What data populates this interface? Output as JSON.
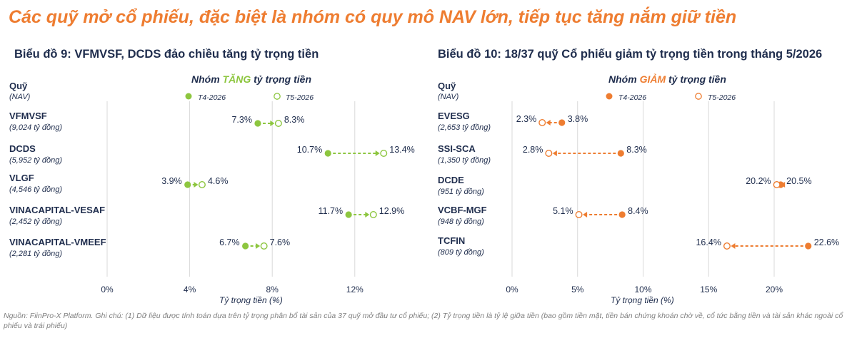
{
  "main_title": "Các quỹ mở cổ phiếu, đặc biệt là nhóm có quy mô NAV lớn, tiếp tục tăng nắm giữ tiền",
  "footnote": "Nguồn: FiinPro-X Platform. Ghi chú: (1) Dữ liệu được tính toán dựa trên tỷ trọng phân bổ tài sản của 37 quỹ mở đầu tư cổ phiếu; (2) Tỷ trọng tiền là tỷ lệ giữa tiền (bao gồm tiền mặt, tiền bán chứng khoán chờ về, cổ tức bằng tiền và tài sản khác ngoài cổ phiếu và trái phiếu)",
  "colors": {
    "increase": "#8dc63f",
    "decrease": "#ee7d31",
    "text": "#1f2d4d",
    "title": "#ee7d31"
  },
  "chart_data": [
    {
      "type": "dumbbell",
      "title": "Biểu đồ 9: VFMVSF, DCDS đảo chiều tăng tỷ trọng tiền",
      "group_title_prefix": "Nhóm ",
      "group_title_keyword": "TĂNG",
      "group_title_suffix": " tỷ trọng tiền",
      "header_name": "Quỹ",
      "header_nav": "(NAV)",
      "legend": [
        "T4-2026",
        "T5-2026"
      ],
      "xlabel": "Tỷ trọng tiền (%)",
      "xlim": [
        0,
        15
      ],
      "ticks": [
        0,
        4,
        8,
        12
      ],
      "tick_labels": [
        "0%",
        "4%",
        "8%",
        "12%"
      ],
      "funds": [
        {
          "name": "VFMVSF",
          "nav": "(9,024 tỷ đồng)",
          "t4": 7.3,
          "t5": 8.3,
          "t4_label": "7.3%",
          "t5_label": "8.3%"
        },
        {
          "name": "DCDS",
          "nav": "(5,952 tỷ đồng)",
          "t4": 10.7,
          "t5": 13.4,
          "t4_label": "10.7%",
          "t5_label": "13.4%"
        },
        {
          "name": "VLGF",
          "nav": "(4,546 tỷ đồng)",
          "t4": 3.9,
          "t5": 4.6,
          "t4_label": "3.9%",
          "t5_label": "4.6%"
        },
        {
          "name": "VINACAPITAL-VESAF",
          "nav": "(2,452 tỷ đồng)",
          "t4": 11.7,
          "t5": 12.9,
          "t4_label": "11.7%",
          "t5_label": "12.9%"
        },
        {
          "name": "VINACAPITAL-VMEEF",
          "nav": "(2,281 tỷ đồng)",
          "t4": 6.7,
          "t5": 7.6,
          "t4_label": "6.7%",
          "t5_label": "7.6%"
        }
      ]
    },
    {
      "type": "dumbbell",
      "title": "Biểu đồ 10: 18/37 quỹ Cổ phiếu giảm tỷ trọng tiền trong tháng 5/2026",
      "group_title_prefix": "Nhóm ",
      "group_title_keyword": "GIẢM",
      "group_title_suffix": " tỷ trọng tiền",
      "header_name": "Quỹ",
      "header_nav": "(NAV)",
      "legend": [
        "T4-2026",
        "T5-2026"
      ],
      "xlabel": "Tỷ trọng tiền (%)",
      "xlim": [
        0,
        25
      ],
      "ticks": [
        0,
        5,
        10,
        15,
        20
      ],
      "tick_labels": [
        "0%",
        "5%",
        "10%",
        "15%",
        "20%"
      ],
      "funds": [
        {
          "name": "EVESG",
          "nav": "(2,653 tỷ đồng)",
          "t4": 3.8,
          "t5": 2.3,
          "t4_label": "3.8%",
          "t5_label": "2.3%"
        },
        {
          "name": "SSI-SCA",
          "nav": "(1,350 tỷ đồng)",
          "t4": 8.3,
          "t5": 2.8,
          "t4_label": "8.3%",
          "t5_label": "2.8%"
        },
        {
          "name": "DCDE",
          "nav": "(951 tỷ đồng)",
          "t4": 20.5,
          "t5": 20.2,
          "t4_label": "20.5%",
          "t5_label": "20.2%"
        },
        {
          "name": "VCBF-MGF",
          "nav": "(948 tỷ đồng)",
          "t4": 8.4,
          "t5": 5.1,
          "t4_label": "8.4%",
          "t5_label": "5.1%"
        },
        {
          "name": "TCFIN",
          "nav": "(809 tỷ đồng)",
          "t4": 22.6,
          "t5": 16.4,
          "t4_label": "22.6%",
          "t5_label": "16.4%"
        }
      ]
    }
  ]
}
